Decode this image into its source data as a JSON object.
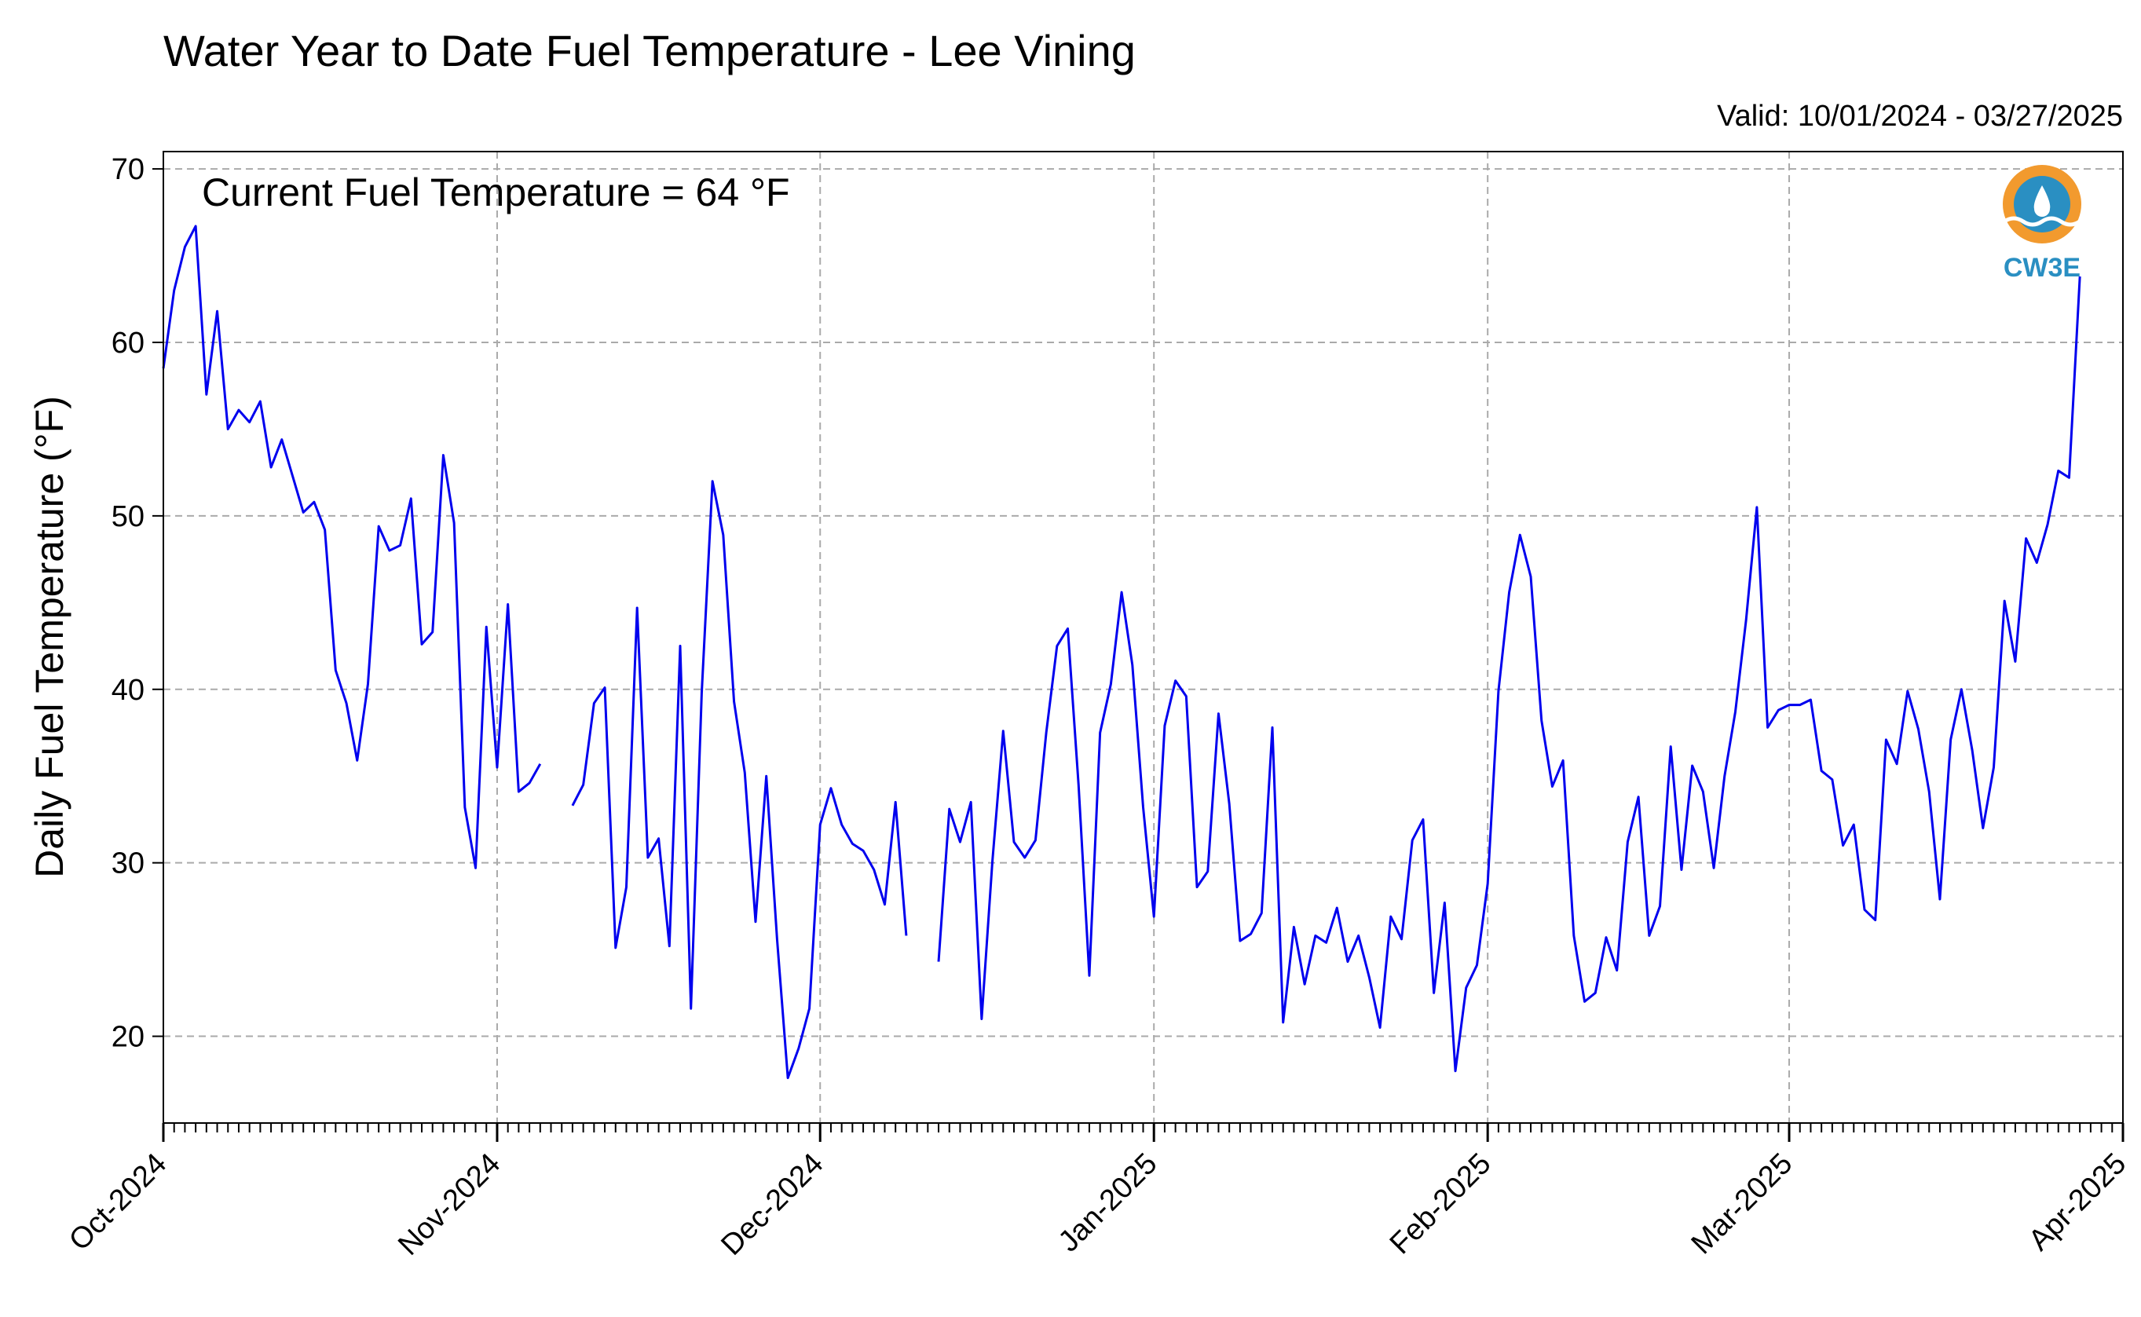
{
  "chart_data": {
    "type": "line",
    "title": "Water Year to Date Fuel Temperature - Lee Vining",
    "valid_text": "Valid: 10/01/2024 - 03/27/2025",
    "annotation": "Current Fuel Temperature = 64 °F",
    "ylabel": "Daily Fuel Temperature (°F)",
    "xlabel": "",
    "logo_text": "CW3E",
    "ylim": [
      15,
      71
    ],
    "yticks": [
      20,
      30,
      40,
      50,
      60,
      70
    ],
    "xlim": [
      "2024-10-01",
      "2025-04-01"
    ],
    "xticks": [
      {
        "date": "2024-10-01",
        "label": "Oct-2024"
      },
      {
        "date": "2024-11-01",
        "label": "Nov-2024"
      },
      {
        "date": "2024-12-01",
        "label": "Dec-2024"
      },
      {
        "date": "2025-01-01",
        "label": "Jan-2025"
      },
      {
        "date": "2025-02-01",
        "label": "Feb-2025"
      },
      {
        "date": "2025-03-01",
        "label": "Mar-2025"
      },
      {
        "date": "2025-04-01",
        "label": "Apr-2025"
      }
    ],
    "grid": true,
    "line_color": "#0000ee",
    "series": [
      {
        "x_start": "2024-10-01",
        "values": [
          58.5,
          63,
          65.5,
          66.7,
          57,
          61.8,
          55,
          56.1,
          55.4,
          56.6,
          52.8,
          54.4,
          52.3,
          50.2,
          50.8,
          49.2,
          41.1,
          39.2,
          35.9,
          40.3,
          49.4,
          48,
          48.3,
          51,
          42.6,
          43.3,
          53.5,
          49.6,
          33.2,
          29.7,
          43.6,
          35.5,
          44.9,
          34.1,
          34.6,
          35.7,
          null,
          null,
          33.3,
          34.5,
          39.2,
          40.1,
          25.1,
          28.6,
          44.7,
          30.3,
          31.4,
          25.2,
          42.5,
          21.6,
          39.8,
          52,
          48.9,
          39.3,
          35.2,
          26.6,
          35,
          25.6,
          17.6,
          19.3,
          21.6,
          32.2,
          34.3,
          32.2,
          31.1,
          30.7,
          29.6,
          27.6,
          33.5,
          25.8,
          null,
          null,
          24.3,
          33.1,
          31.2,
          33.5,
          21,
          30.1,
          37.6,
          31.2,
          30.3,
          31.3,
          37.5,
          42.5,
          43.5,
          34.5,
          23.5,
          37.5,
          40.3,
          45.6,
          41.4,
          33.2,
          26.9,
          37.9,
          40.5,
          39.6,
          28.6,
          29.5,
          38.6,
          33.4,
          25.5,
          25.9,
          27.1,
          37.8,
          20.8,
          26.3,
          23,
          25.8,
          25.4,
          27.4,
          24.3,
          25.8,
          23.4,
          20.5,
          26.9,
          25.6,
          31.3,
          32.5,
          22.5,
          27.7,
          18,
          22.8,
          24.1,
          28.8,
          39.9,
          45.6,
          48.9,
          46.5,
          38.2,
          34.4,
          35.9,
          25.8,
          22,
          22.5,
          25.7,
          23.8,
          31.2,
          33.8,
          25.8,
          27.5,
          36.7,
          29.6,
          35.6,
          34.1,
          29.7,
          35,
          38.7,
          44,
          50.5,
          37.8,
          38.8,
          39.1,
          39.1,
          39.4,
          35.3,
          34.8,
          31,
          32.2,
          27.3,
          26.7,
          37.1,
          35.7,
          39.9,
          37.7,
          34.1,
          27.9,
          37.1,
          40,
          36.5,
          32,
          35.5,
          45.1,
          41.6,
          48.7,
          47.3,
          49.5,
          52.6,
          52.2,
          63.8
        ]
      }
    ]
  }
}
